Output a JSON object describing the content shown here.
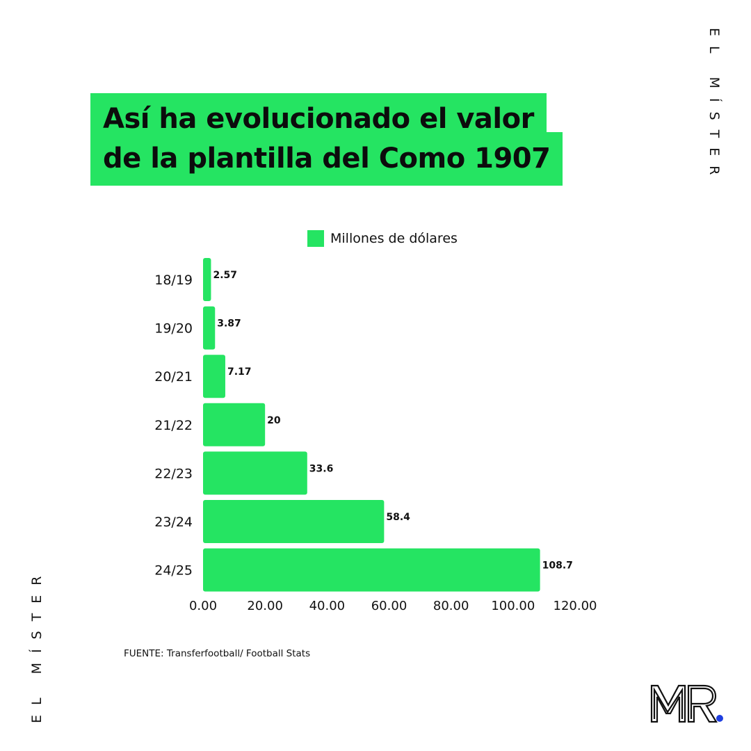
{
  "title": {
    "line1": "Así ha evolucionado el valor",
    "line2": "de la plantilla del Como 1907"
  },
  "brand": {
    "vertical_text": "EL MÍSTER",
    "logo_text": "MR."
  },
  "legend": {
    "label": "Millones de dólares"
  },
  "source": "FUENTE: Transferfootball/ Football Stats",
  "colors": {
    "bar": "#25e462",
    "accent_dot": "#1f3fe0",
    "text": "#111111"
  },
  "chart_data": {
    "type": "bar",
    "orientation": "horizontal",
    "categories": [
      "18/19",
      "19/20",
      "20/21",
      "21/22",
      "22/23",
      "23/24",
      "24/25"
    ],
    "series": [
      {
        "name": "Millones de dólares",
        "values": [
          2.57,
          3.87,
          7.17,
          20,
          33.6,
          58.4,
          108.7
        ],
        "labels": [
          "2.57",
          "3.87",
          "7.17",
          "20",
          "33.6",
          "58.4",
          "108.7"
        ]
      }
    ],
    "xlim": [
      0,
      120
    ],
    "xticks": [
      "0.00",
      "20.00",
      "40.00",
      "60.00",
      "80.00",
      "100.00",
      "120.00"
    ],
    "grid": false,
    "legend_position": "top"
  }
}
